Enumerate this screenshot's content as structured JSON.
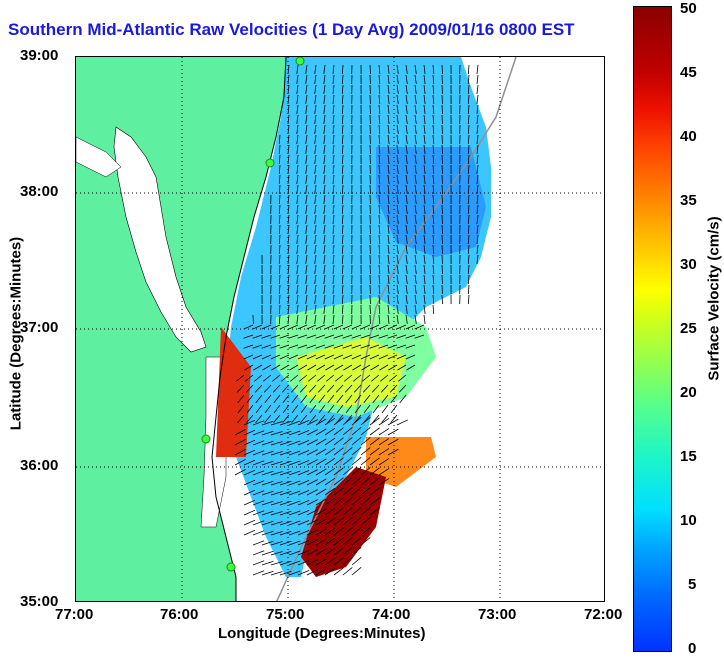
{
  "title": "Southern Mid-Atlantic Raw Velocities (1 Day Avg) 2009/01/16 0800 EST",
  "xlabel": "Longitude (Degrees:Minutes)",
  "ylabel": "Latitude (Degrees:Minutes)",
  "x_ticks": [
    "77:00",
    "76:00",
    "75:00",
    "74:00",
    "73:00",
    "72:00"
  ],
  "y_ticks": [
    "39:00",
    "38:00",
    "37:00",
    "36:00",
    "35:00"
  ],
  "colorbar": {
    "label": "Surface Velocity (cm/s)",
    "ticks": [
      "50",
      "45",
      "40",
      "35",
      "30",
      "25",
      "20",
      "15",
      "10",
      "5",
      "0"
    ],
    "range": [
      0,
      50
    ],
    "colors": {
      "low": "#0033ff",
      "mid": "#55ff8c",
      "high": "#8a0000"
    }
  },
  "map": {
    "lon_range": [
      -77,
      -72
    ],
    "lat_range": [
      35,
      39
    ],
    "grid": "dotted",
    "land_color": "#5ef0a0",
    "water_color": "#ffffff"
  }
}
